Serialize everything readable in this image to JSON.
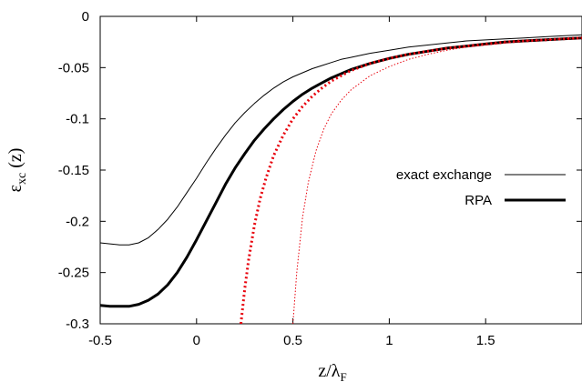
{
  "chart_data": {
    "type": "line",
    "xlabel": "z/λ",
    "xlabel_sub": "F",
    "ylabel": "ε",
    "ylabel_sub": "xc",
    "ylabel_suffix": " (z)",
    "xlim": [
      -0.5,
      2.0
    ],
    "ylim": [
      -0.3,
      0.0
    ],
    "xticks": [
      -0.5,
      0,
      0.5,
      1,
      1.5
    ],
    "xtick_labels": [
      "-0.5",
      "0",
      "0.5",
      "1",
      "1.5"
    ],
    "yticks": [
      0,
      -0.05,
      -0.1,
      -0.15,
      -0.2,
      -0.25,
      -0.3
    ],
    "ytick_labels": [
      "0",
      "-0.05",
      "-0.1",
      "-0.15",
      "-0.2",
      "-0.25",
      "-0.3"
    ],
    "grid": false,
    "legend_position": "right",
    "series": [
      {
        "name": "exact exchange",
        "color": "#000000",
        "style": "solid-thin",
        "x": [
          -0.5,
          -0.45,
          -0.4,
          -0.35,
          -0.3,
          -0.25,
          -0.2,
          -0.15,
          -0.1,
          -0.05,
          0.0,
          0.05,
          0.1,
          0.15,
          0.2,
          0.25,
          0.3,
          0.35,
          0.4,
          0.45,
          0.5,
          0.55,
          0.6,
          0.65,
          0.7,
          0.75,
          0.8,
          0.9,
          1.0,
          1.1,
          1.2,
          1.3,
          1.4,
          1.5,
          1.6,
          1.7,
          1.8,
          1.9,
          2.0
        ],
        "y": [
          -0.221,
          -0.222,
          -0.223,
          -0.223,
          -0.221,
          -0.216,
          -0.208,
          -0.198,
          -0.186,
          -0.172,
          -0.158,
          -0.143,
          -0.129,
          -0.116,
          -0.104,
          -0.094,
          -0.085,
          -0.077,
          -0.07,
          -0.064,
          -0.059,
          -0.055,
          -0.051,
          -0.048,
          -0.045,
          -0.042,
          -0.04,
          -0.036,
          -0.033,
          -0.03,
          -0.028,
          -0.026,
          -0.024,
          -0.023,
          -0.022,
          -0.021,
          -0.02,
          -0.019,
          -0.018
        ]
      },
      {
        "name": "RPA",
        "color": "#000000",
        "style": "solid-thick",
        "x": [
          -0.5,
          -0.45,
          -0.4,
          -0.35,
          -0.3,
          -0.25,
          -0.2,
          -0.15,
          -0.1,
          -0.05,
          0.0,
          0.05,
          0.1,
          0.15,
          0.2,
          0.25,
          0.3,
          0.35,
          0.4,
          0.45,
          0.5,
          0.55,
          0.6,
          0.65,
          0.7,
          0.75,
          0.8,
          0.9,
          1.0,
          1.1,
          1.2,
          1.3,
          1.4,
          1.5,
          1.6,
          1.7,
          1.8,
          1.9,
          2.0
        ],
        "y": [
          -0.282,
          -0.283,
          -0.283,
          -0.283,
          -0.281,
          -0.277,
          -0.271,
          -0.262,
          -0.25,
          -0.235,
          -0.218,
          -0.2,
          -0.182,
          -0.164,
          -0.148,
          -0.134,
          -0.121,
          -0.11,
          -0.1,
          -0.091,
          -0.083,
          -0.076,
          -0.07,
          -0.065,
          -0.06,
          -0.056,
          -0.052,
          -0.046,
          -0.041,
          -0.037,
          -0.034,
          -0.031,
          -0.029,
          -0.027,
          -0.025,
          -0.024,
          -0.023,
          -0.022,
          -0.021
        ]
      },
      {
        "color": "#e8000b",
        "style": "dotted-thick",
        "x": [
          0.23,
          0.25,
          0.27,
          0.3,
          0.33,
          0.36,
          0.4,
          0.45,
          0.5,
          0.55,
          0.6,
          0.65,
          0.7,
          0.75,
          0.8,
          0.9,
          1.0,
          1.1,
          1.2,
          1.3,
          1.4,
          1.5,
          1.6,
          1.7,
          1.8,
          1.9,
          2.0
        ],
        "y": [
          -0.3,
          -0.266,
          -0.238,
          -0.204,
          -0.178,
          -0.158,
          -0.136,
          -0.116,
          -0.1,
          -0.088,
          -0.078,
          -0.07,
          -0.063,
          -0.058,
          -0.053,
          -0.046,
          -0.041,
          -0.037,
          -0.034,
          -0.031,
          -0.029,
          -0.027,
          -0.025,
          -0.024,
          -0.023,
          -0.022,
          -0.021
        ]
      },
      {
        "color": "#e8000b",
        "style": "dotted-thin",
        "x": [
          0.5,
          0.52,
          0.55,
          0.58,
          0.62,
          0.66,
          0.7,
          0.75,
          0.8,
          0.9,
          1.0,
          1.1,
          1.2,
          1.3,
          1.4,
          1.5,
          1.6,
          1.7,
          1.8,
          1.9,
          2.0
        ],
        "y": [
          -0.3,
          -0.25,
          -0.196,
          -0.162,
          -0.131,
          -0.11,
          -0.095,
          -0.082,
          -0.072,
          -0.058,
          -0.049,
          -0.042,
          -0.037,
          -0.033,
          -0.03,
          -0.028,
          -0.026,
          -0.024,
          -0.023,
          -0.022,
          -0.021
        ]
      }
    ]
  }
}
